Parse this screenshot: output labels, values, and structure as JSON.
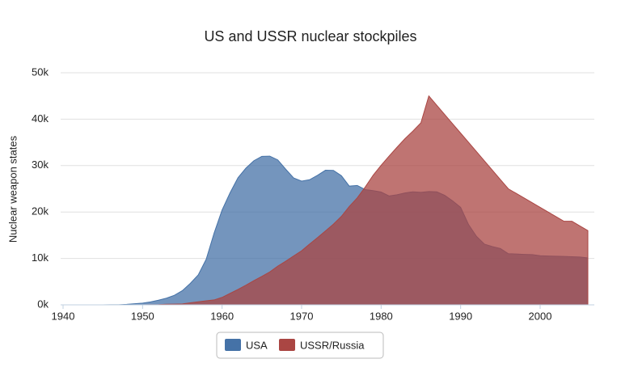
{
  "chart_data": {
    "type": "area",
    "title": "US and USSR nuclear stockpiles",
    "y_axis_label": "Nuclear weapon states",
    "x": [
      1940,
      1941,
      1942,
      1943,
      1944,
      1945,
      1946,
      1947,
      1948,
      1949,
      1950,
      1951,
      1952,
      1953,
      1954,
      1955,
      1956,
      1957,
      1958,
      1959,
      1960,
      1961,
      1962,
      1963,
      1964,
      1965,
      1966,
      1967,
      1968,
      1969,
      1970,
      1971,
      1972,
      1973,
      1974,
      1975,
      1976,
      1977,
      1978,
      1979,
      1980,
      1981,
      1982,
      1983,
      1984,
      1985,
      1986,
      1987,
      1988,
      1989,
      1990,
      1991,
      1992,
      1993,
      1994,
      1995,
      1996,
      1997,
      1998,
      1999,
      2000,
      2001,
      2002,
      2003,
      2004,
      2005,
      2006
    ],
    "series": [
      {
        "name": "USA",
        "color": "#4572a7",
        "values": [
          null,
          null,
          null,
          null,
          null,
          6,
          11,
          32,
          110,
          235,
          369,
          640,
          1005,
          1436,
          2063,
          3057,
          4618,
          6444,
          9822,
          15468,
          20434,
          24126,
          27387,
          29459,
          31056,
          31982,
          32040,
          31233,
          29224,
          27342,
          26662,
          26956,
          27912,
          28999,
          28965,
          27826,
          25579,
          25722,
          24826,
          24605,
          24304,
          23464,
          23708,
          24099,
          24357,
          24237,
          24401,
          24344,
          23586,
          22380,
          21004,
          17287,
          14747,
          13076,
          12555,
          12144,
          11009,
          10950,
          10871,
          10824,
          10577,
          10527,
          10475,
          10421,
          10358,
          10295,
          10104
        ]
      },
      {
        "name": "USSR/Russia",
        "color": "#aa4643",
        "values": [
          null,
          null,
          null,
          null,
          null,
          null,
          null,
          null,
          null,
          null,
          5,
          25,
          50,
          120,
          150,
          200,
          426,
          660,
          869,
          1060,
          1605,
          2471,
          3322,
          4238,
          5221,
          6129,
          7089,
          8339,
          9399,
          10538,
          11643,
          13092,
          14478,
          15915,
          17385,
          19055,
          21205,
          23044,
          25393,
          27935,
          30062,
          32049,
          33952,
          35804,
          37431,
          39197,
          45000,
          43000,
          41000,
          39000,
          37000,
          35000,
          33000,
          31000,
          29000,
          27000,
          25000,
          24000,
          23000,
          22000,
          21000,
          20000,
          19000,
          18000,
          18000,
          17000,
          16000
        ]
      }
    ],
    "xlim": [
      1940,
      2006
    ],
    "xticks": [
      1940,
      1950,
      1960,
      1970,
      1980,
      1990,
      2000
    ],
    "ylim": [
      0,
      50000
    ],
    "yticks": [
      {
        "value": 0,
        "label": "0k"
      },
      {
        "value": 10000,
        "label": "10k"
      },
      {
        "value": 20000,
        "label": "20k"
      },
      {
        "value": 30000,
        "label": "30k"
      },
      {
        "value": 40000,
        "label": "40k"
      },
      {
        "value": 50000,
        "label": "50k"
      }
    ],
    "grid": true,
    "legend": "bottom"
  }
}
